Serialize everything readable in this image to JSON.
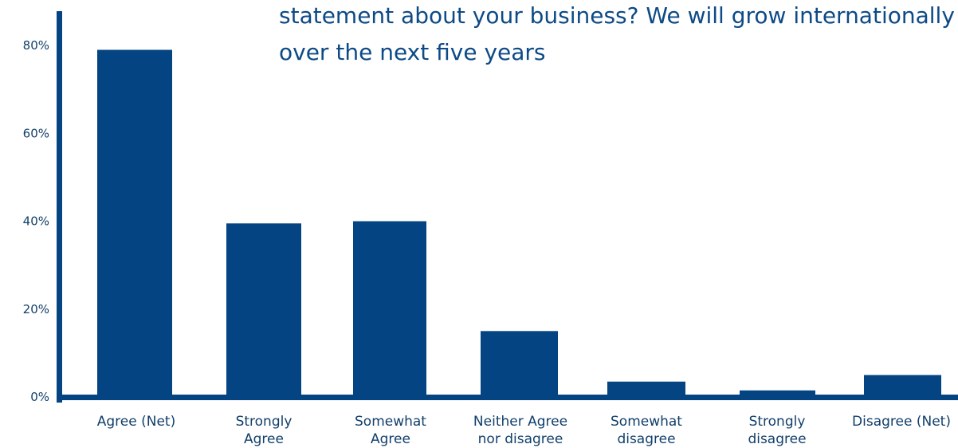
{
  "chart_data": {
    "type": "bar",
    "title_lines": [
      "statement about your business? We will grow internationally",
      "over the next five years"
    ],
    "categories": [
      [
        "Agree (Net)"
      ],
      [
        "Strongly",
        "Agree"
      ],
      [
        "Somewhat",
        "Agree"
      ],
      [
        "Neither Agree",
        "nor disagree"
      ],
      [
        "Somewhat",
        "disagree"
      ],
      [
        "Strongly",
        "disagree"
      ],
      [
        "Disagree (Net)"
      ]
    ],
    "values": [
      79,
      39.5,
      40,
      15,
      3.5,
      1.5,
      5
    ],
    "yticks": [
      "0%",
      "20%",
      "40%",
      "60%",
      "80%"
    ],
    "ylim": [
      0,
      80
    ],
    "grid": false,
    "bar_color": "#054482",
    "axis_color": "#054482"
  }
}
